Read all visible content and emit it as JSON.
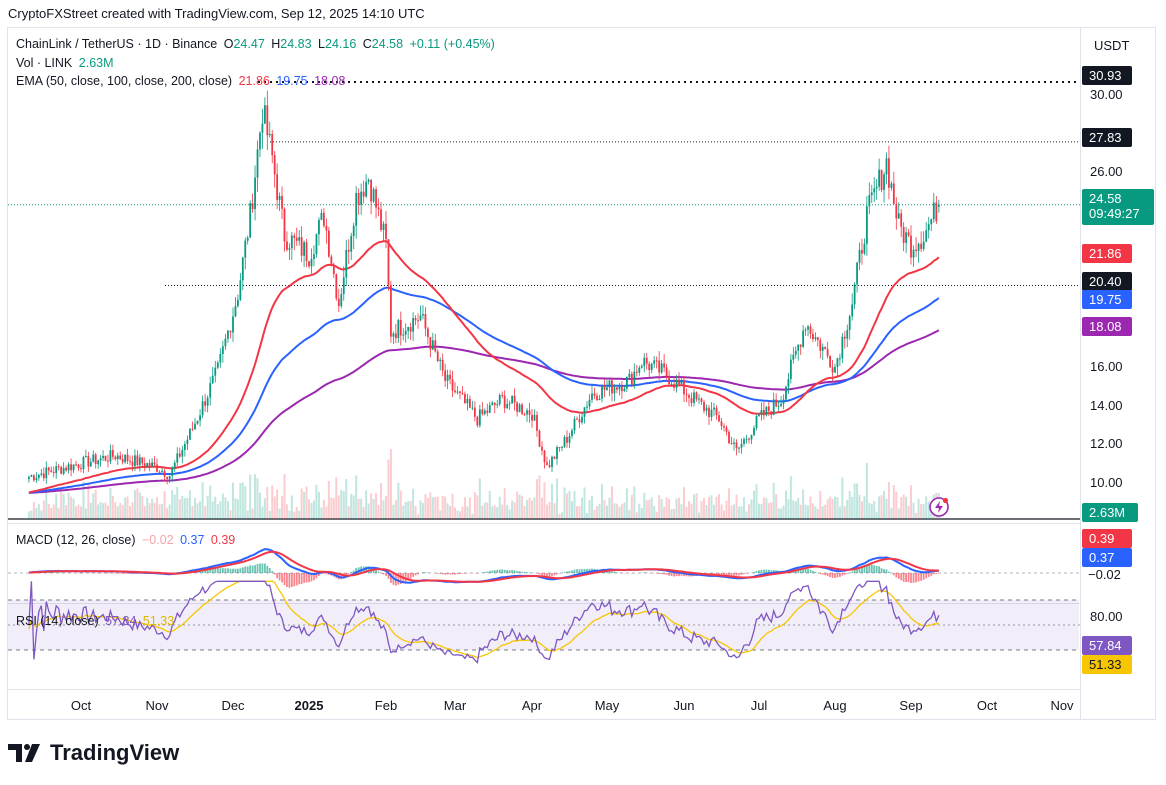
{
  "caption": "CryptoFXStreet created with TradingView.com, Sep 12, 2025 14:10 UTC",
  "currency": "USDT",
  "symbol_line": {
    "name": "ChainLink / TetherUS · 1D · Binance",
    "o_label": "O",
    "o": "24.47",
    "h_label": "H",
    "h": "24.83",
    "l_label": "L",
    "l": "24.16",
    "c_label": "C",
    "c": "24.58",
    "change": "+0.11 (+0.45%)"
  },
  "vol_line": {
    "label": "Vol · LINK",
    "value": "2.63M"
  },
  "ema_line": {
    "label": "EMA (50, close, 100, close, 200, close)",
    "v1": "21.86",
    "v2": "19.75",
    "v3": "18.08"
  },
  "macd_line": {
    "label": "MACD (12, 26, close)",
    "hist": "−0.02",
    "macd": "0.37",
    "signal": "0.39"
  },
  "rsi_line": {
    "label": "RSI (14, close)",
    "rsi": "57.84",
    "ma": "51.33"
  },
  "price_scale": [
    "30.00",
    "26.00",
    "16.00",
    "14.00",
    "12.00",
    "10.00"
  ],
  "price_badges": {
    "high_level": "30.93",
    "level_2": "27.83",
    "last": "24.58",
    "countdown": "09:49:27",
    "ema50": "21.86",
    "level_1": "20.40",
    "ema100": "19.75",
    "ema200": "18.08",
    "volume": "2.63M"
  },
  "macd_badges": {
    "signal": "0.39",
    "macd": "0.37",
    "hist": "−0.02"
  },
  "rsi_scale": {
    "top": "80.00"
  },
  "rsi_badges": {
    "rsi": "57.84",
    "ma": "51.33"
  },
  "x_axis": [
    "Oct",
    "Nov",
    "Dec",
    "2025",
    "Feb",
    "Mar",
    "Apr",
    "May",
    "Jun",
    "Jul",
    "Aug",
    "Sep",
    "Oct",
    "Nov"
  ],
  "brand": "TradingView",
  "colors": {
    "up": "#089981",
    "down": "#f23645",
    "ema50": "#f23645",
    "ema100": "#2962ff",
    "ema200": "#9c27b0",
    "macd": "#2962ff",
    "signal": "#f23645",
    "rsi": "#7e57c2",
    "rsi_ma": "#f7c600",
    "badge_dark": "#131722"
  },
  "chart_data": {
    "type": "candlestick",
    "title": "ChainLink / TetherUS · 1D · Binance",
    "ylim": [
      9.2,
      32.5
    ],
    "x_months": [
      "Oct",
      "Nov",
      "Dec",
      "2025",
      "Feb",
      "Mar",
      "Apr",
      "May",
      "Jun",
      "Jul",
      "Aug",
      "Sep",
      "Oct",
      "Nov"
    ],
    "price_path": [
      [
        "2024-09-10",
        10.5
      ],
      [
        "2024-10-01",
        11.2
      ],
      [
        "2024-10-15",
        11.6
      ],
      [
        "2024-11-01",
        11.0
      ],
      [
        "2024-11-06",
        10.6
      ],
      [
        "2024-11-15",
        13.0
      ],
      [
        "2024-11-25",
        16.0
      ],
      [
        "2024-12-03",
        20.0
      ],
      [
        "2024-12-08",
        24.0
      ],
      [
        "2024-12-13",
        29.5
      ],
      [
        "2024-12-17",
        27.0
      ],
      [
        "2024-12-22",
        23.0
      ],
      [
        "2025-01-01",
        22.0
      ],
      [
        "2025-01-07",
        24.0
      ],
      [
        "2025-01-13",
        19.5
      ],
      [
        "2025-01-20",
        25.0
      ],
      [
        "2025-01-25",
        26.0
      ],
      [
        "2025-02-01",
        22.5
      ],
      [
        "2025-02-03",
        18.0
      ],
      [
        "2025-02-15",
        18.8
      ],
      [
        "2025-02-25",
        15.5
      ],
      [
        "2025-03-10",
        13.5
      ],
      [
        "2025-03-20",
        14.5
      ],
      [
        "2025-04-01",
        13.8
      ],
      [
        "2025-04-07",
        11.0
      ],
      [
        "2025-04-15",
        12.5
      ],
      [
        "2025-04-25",
        14.8
      ],
      [
        "2025-05-10",
        15.5
      ],
      [
        "2025-05-15",
        16.5
      ],
      [
        "2025-05-25",
        15.8
      ],
      [
        "2025-06-05",
        14.5
      ],
      [
        "2025-06-15",
        13.5
      ],
      [
        "2025-06-22",
        11.8
      ],
      [
        "2025-07-01",
        13.5
      ],
      [
        "2025-07-10",
        14.5
      ],
      [
        "2025-07-20",
        18.5
      ],
      [
        "2025-07-25",
        17.5
      ],
      [
        "2025-08-01",
        16.2
      ],
      [
        "2025-08-08",
        19.5
      ],
      [
        "2025-08-14",
        24.0
      ],
      [
        "2025-08-22",
        26.8
      ],
      [
        "2025-08-27",
        23.5
      ],
      [
        "2025-09-01",
        22.5
      ],
      [
        "2025-09-06",
        23.0
      ],
      [
        "2025-09-12",
        24.58
      ]
    ],
    "last_ohlc": {
      "open": 24.47,
      "high": 24.83,
      "low": 24.16,
      "close": 24.58
    },
    "horizontal_levels": [
      30.93,
      27.83,
      20.4
    ],
    "ema": [
      {
        "name": "EMA 50",
        "last": 21.86
      },
      {
        "name": "EMA 100",
        "last": 19.75
      },
      {
        "name": "EMA 200",
        "last": 18.08
      }
    ],
    "volume_last": "2.63M",
    "macd": {
      "macd": 0.37,
      "signal": 0.39,
      "histogram": -0.02
    },
    "rsi": {
      "rsi": 57.84,
      "ma": 51.33,
      "upper": 70,
      "lower": 30
    }
  }
}
